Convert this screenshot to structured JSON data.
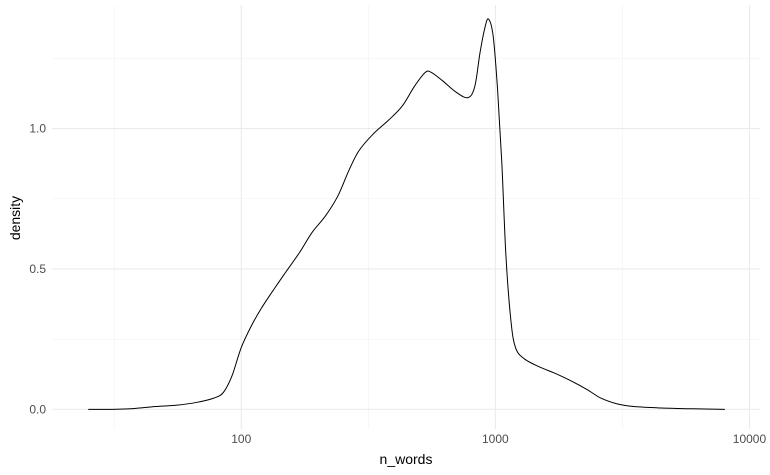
{
  "chart_data": {
    "type": "line",
    "title": "",
    "xlabel": "n_words",
    "ylabel": "density",
    "x_scale": "log10",
    "xlim": [
      18,
      11000
    ],
    "ylim": [
      -0.07,
      1.44
    ],
    "grid": true,
    "x_ticks": [
      {
        "value": 100,
        "label": "100"
      },
      {
        "value": 1000,
        "label": "1000"
      },
      {
        "value": 10000,
        "label": "10000"
      }
    ],
    "y_ticks": [
      {
        "value": 0.0,
        "label": "0.0"
      },
      {
        "value": 0.5,
        "label": "0.5"
      },
      {
        "value": 1.0,
        "label": "1.0"
      }
    ],
    "series": [
      {
        "color": "#000000",
        "points": [
          [
            25,
            0.0
          ],
          [
            31,
            0.0
          ],
          [
            38,
            0.003
          ],
          [
            46,
            0.01
          ],
          [
            56,
            0.015
          ],
          [
            67,
            0.025
          ],
          [
            78,
            0.04
          ],
          [
            85,
            0.06
          ],
          [
            92,
            0.12
          ],
          [
            100,
            0.22
          ],
          [
            110,
            0.3
          ],
          [
            120,
            0.36
          ],
          [
            135,
            0.43
          ],
          [
            150,
            0.49
          ],
          [
            170,
            0.56
          ],
          [
            190,
            0.63
          ],
          [
            215,
            0.69
          ],
          [
            240,
            0.76
          ],
          [
            265,
            0.85
          ],
          [
            290,
            0.92
          ],
          [
            330,
            0.98
          ],
          [
            380,
            1.03
          ],
          [
            430,
            1.08
          ],
          [
            480,
            1.15
          ],
          [
            530,
            1.2
          ],
          [
            560,
            1.2
          ],
          [
            620,
            1.17
          ],
          [
            700,
            1.13
          ],
          [
            780,
            1.11
          ],
          [
            830,
            1.15
          ],
          [
            870,
            1.27
          ],
          [
            910,
            1.36
          ],
          [
            940,
            1.39
          ],
          [
            980,
            1.33
          ],
          [
            1020,
            1.14
          ],
          [
            1060,
            0.88
          ],
          [
            1100,
            0.55
          ],
          [
            1150,
            0.32
          ],
          [
            1200,
            0.22
          ],
          [
            1300,
            0.18
          ],
          [
            1500,
            0.15
          ],
          [
            1700,
            0.13
          ],
          [
            2000,
            0.1
          ],
          [
            2300,
            0.07
          ],
          [
            2600,
            0.04
          ],
          [
            3000,
            0.02
          ],
          [
            3500,
            0.01
          ],
          [
            4500,
            0.005
          ],
          [
            6000,
            0.002
          ],
          [
            8000,
            0.0
          ]
        ]
      }
    ]
  }
}
